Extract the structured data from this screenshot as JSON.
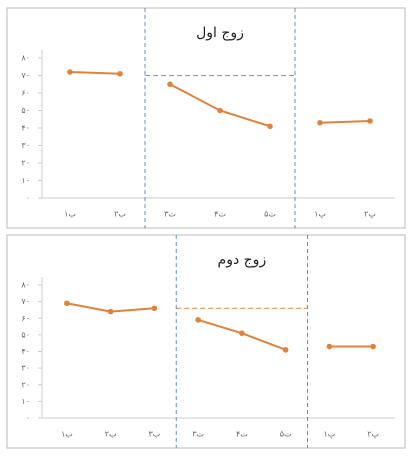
{
  "chart_data": [
    {
      "type": "line",
      "title": "زوج اول",
      "color": "#e0823a",
      "categories": [
        "ب۱",
        "ب۲",
        "ت۳",
        "ت۴",
        "ت۵",
        "پ۱",
        "پ۲"
      ],
      "series": [
        {
          "values": [
            72,
            71,
            null,
            null,
            null,
            null,
            null
          ]
        },
        {
          "values": [
            null,
            null,
            65,
            50,
            41,
            null,
            null
          ]
        },
        {
          "values": [
            null,
            null,
            null,
            null,
            null,
            43,
            44
          ]
        }
      ],
      "reference_line": 70,
      "ylim": [
        0,
        80
      ],
      "yticks": [
        {
          "value": 0,
          "label": "۰"
        },
        {
          "value": 10,
          "label": "۱۰"
        },
        {
          "value": 20,
          "label": "۲۰"
        },
        {
          "value": 30,
          "label": "۳۰"
        },
        {
          "value": 40,
          "label": "۴۰"
        },
        {
          "value": 50,
          "label": "۵۰"
        },
        {
          "value": 60,
          "label": "۶۰"
        },
        {
          "value": 70,
          "label": "۷۰"
        },
        {
          "value": 80,
          "label": "۸۰"
        }
      ]
    },
    {
      "type": "line",
      "title": "زوج دوم",
      "color": "#e0823a",
      "categories": [
        "ب۱",
        "ب۲",
        "ب۳",
        "ت۳",
        "ت۴",
        "ت۵",
        "پ۱",
        "پ۲"
      ],
      "series": [
        {
          "values": [
            69,
            64,
            66,
            null,
            null,
            null,
            null,
            null
          ]
        },
        {
          "values": [
            null,
            null,
            null,
            59,
            51,
            41,
            null,
            null
          ]
        },
        {
          "values": [
            null,
            null,
            null,
            null,
            null,
            null,
            43,
            43
          ]
        }
      ],
      "reference_line": 66,
      "ylim": [
        0,
        80
      ],
      "yticks": [
        {
          "value": 0,
          "label": "۰"
        },
        {
          "value": 10,
          "label": "۱۰"
        },
        {
          "value": 20,
          "label": "۲۰"
        },
        {
          "value": 30,
          "label": "۳۰"
        },
        {
          "value": 40,
          "label": "۴۰"
        },
        {
          "value": 50,
          "label": "۵۰"
        },
        {
          "value": 60,
          "label": "۶۰"
        },
        {
          "value": 70,
          "label": "۷۰"
        },
        {
          "value": 80,
          "label": "۸۰"
        }
      ]
    }
  ]
}
